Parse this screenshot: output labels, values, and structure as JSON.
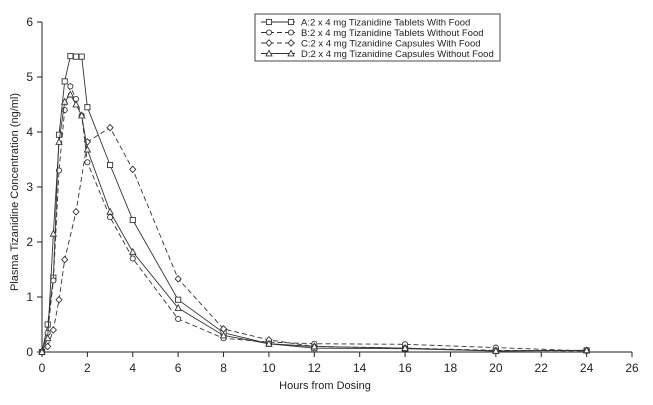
{
  "chart_data": {
    "type": "line",
    "title": "",
    "xlabel": "Hours from Dosing",
    "ylabel": "Plasma Tizanidine Concentration (ng/ml)",
    "xlim": [
      0,
      26
    ],
    "ylim": [
      0,
      6
    ],
    "xticks": [
      0,
      2,
      4,
      6,
      8,
      10,
      12,
      14,
      16,
      18,
      20,
      22,
      24,
      26
    ],
    "yticks": [
      0,
      1,
      2,
      3,
      4,
      5,
      6
    ],
    "grid": false,
    "legend_position": "top-right",
    "series": [
      {
        "name": "A:2 x 4 mg Tizanidine Tablets With Food",
        "marker": "square",
        "dash": "solid",
        "x": [
          0,
          0.25,
          0.5,
          0.75,
          1,
          1.25,
          1.5,
          1.75,
          2,
          3,
          4,
          6,
          8,
          10,
          12,
          16,
          20,
          24
        ],
        "y": [
          0,
          0.5,
          1.35,
          3.95,
          4.92,
          5.38,
          5.37,
          5.37,
          4.45,
          3.4,
          2.4,
          0.95,
          0.35,
          0.15,
          0.07,
          0.06,
          0.02,
          0.03
        ]
      },
      {
        "name": "B:2 x 4 mg Tizanidine Tablets Without Food",
        "marker": "circle",
        "dash": "dashed",
        "x": [
          0,
          0.25,
          0.5,
          0.75,
          1,
          1.25,
          1.5,
          1.75,
          2,
          3,
          4,
          6,
          8,
          10,
          12,
          16,
          20,
          24
        ],
        "y": [
          0,
          0.35,
          1.3,
          3.3,
          4.4,
          4.83,
          4.6,
          4.3,
          3.45,
          2.45,
          1.7,
          0.6,
          0.25,
          0.18,
          0.15,
          0.14,
          0.08,
          0.02
        ]
      },
      {
        "name": "C:2 x 4 mg Tizanidine Capsules With Food",
        "marker": "diamond",
        "dash": "dashed",
        "x": [
          0,
          0.25,
          0.5,
          0.75,
          1,
          1.5,
          2,
          3,
          4,
          6,
          8,
          10,
          12,
          16,
          20,
          24
        ],
        "y": [
          0,
          0.1,
          0.4,
          0.95,
          1.68,
          2.55,
          3.82,
          4.08,
          3.32,
          1.33,
          0.42,
          0.22,
          0.1,
          0.07,
          0.03,
          0.02
        ]
      },
      {
        "name": "D:2 x 4 mg Tizanidine Capsules Without Food",
        "marker": "triangle",
        "dash": "solid",
        "x": [
          0,
          0.25,
          0.5,
          0.75,
          1,
          1.25,
          1.5,
          1.75,
          2,
          3,
          4,
          6,
          8,
          10,
          12,
          16,
          20,
          24
        ],
        "y": [
          0,
          0.25,
          2.15,
          3.82,
          4.55,
          4.68,
          4.5,
          4.3,
          3.68,
          2.55,
          1.82,
          0.8,
          0.3,
          0.15,
          0.1,
          0.07,
          0.02,
          0.03
        ]
      }
    ]
  }
}
